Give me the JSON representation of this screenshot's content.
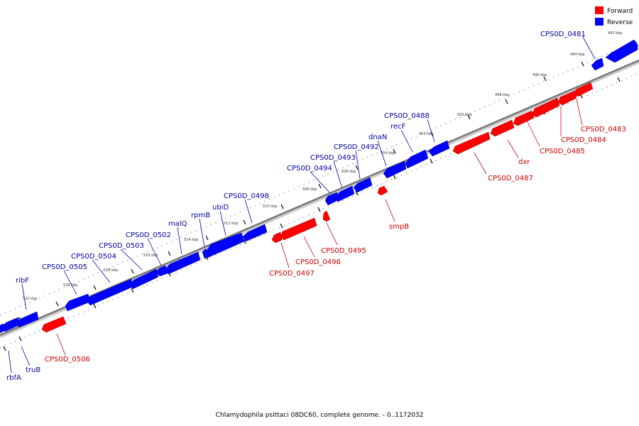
{
  "caption": "Chlamydophila psittaci 08DC60, complete genome. - 0..1172032",
  "legend": [
    {
      "label": "Forward",
      "color": "#ff0000"
    },
    {
      "label": "Reverse",
      "color": "#0000ff"
    }
  ],
  "colors": {
    "forward": "#ff0000",
    "reverse": "#0000ff",
    "backbone": "#888888"
  },
  "ticks": [
    "492 kbp",
    "494 kbp",
    "496 kbp",
    "498 kbp",
    "500 kbp",
    "502 kbp",
    "504 kbp",
    "506 kbp",
    "508 kbp",
    "510 kbp",
    "512 kbp",
    "514 kbp",
    "516 kbp",
    "518 kbp",
    "520 kbp",
    "522 kbp"
  ],
  "reverse_genes": [
    {
      "name": "CPS0D_0481"
    },
    {
      "name": "recF"
    },
    {
      "name": "CPS0D_0488"
    },
    {
      "name": "dnaN"
    },
    {
      "name": "CPS0D_0492"
    },
    {
      "name": "CPS0D_0493"
    },
    {
      "name": "CPS0D_0494"
    },
    {
      "name": "CPS0D_0498"
    },
    {
      "name": "ubiD"
    },
    {
      "name": "rpmB"
    },
    {
      "name": "malQ"
    },
    {
      "name": "CPS0D_0502"
    },
    {
      "name": "CPS0D_0503"
    },
    {
      "name": "CPS0D_0504"
    },
    {
      "name": "CPS0D_0505"
    },
    {
      "name": "ribF"
    },
    {
      "name": "truB"
    },
    {
      "name": "rbfA"
    }
  ],
  "forward_genes": [
    {
      "name": "CPS0D_0483"
    },
    {
      "name": "CPS0D_0484"
    },
    {
      "name": "CPS0D_0485"
    },
    {
      "name": "dxr"
    },
    {
      "name": "CPS0D_0487"
    },
    {
      "name": "smpB"
    },
    {
      "name": "CPS0D_0495"
    },
    {
      "name": "CPS0D_0496"
    },
    {
      "name": "CPS0D_0497"
    },
    {
      "name": "CPS0D_0506"
    }
  ]
}
